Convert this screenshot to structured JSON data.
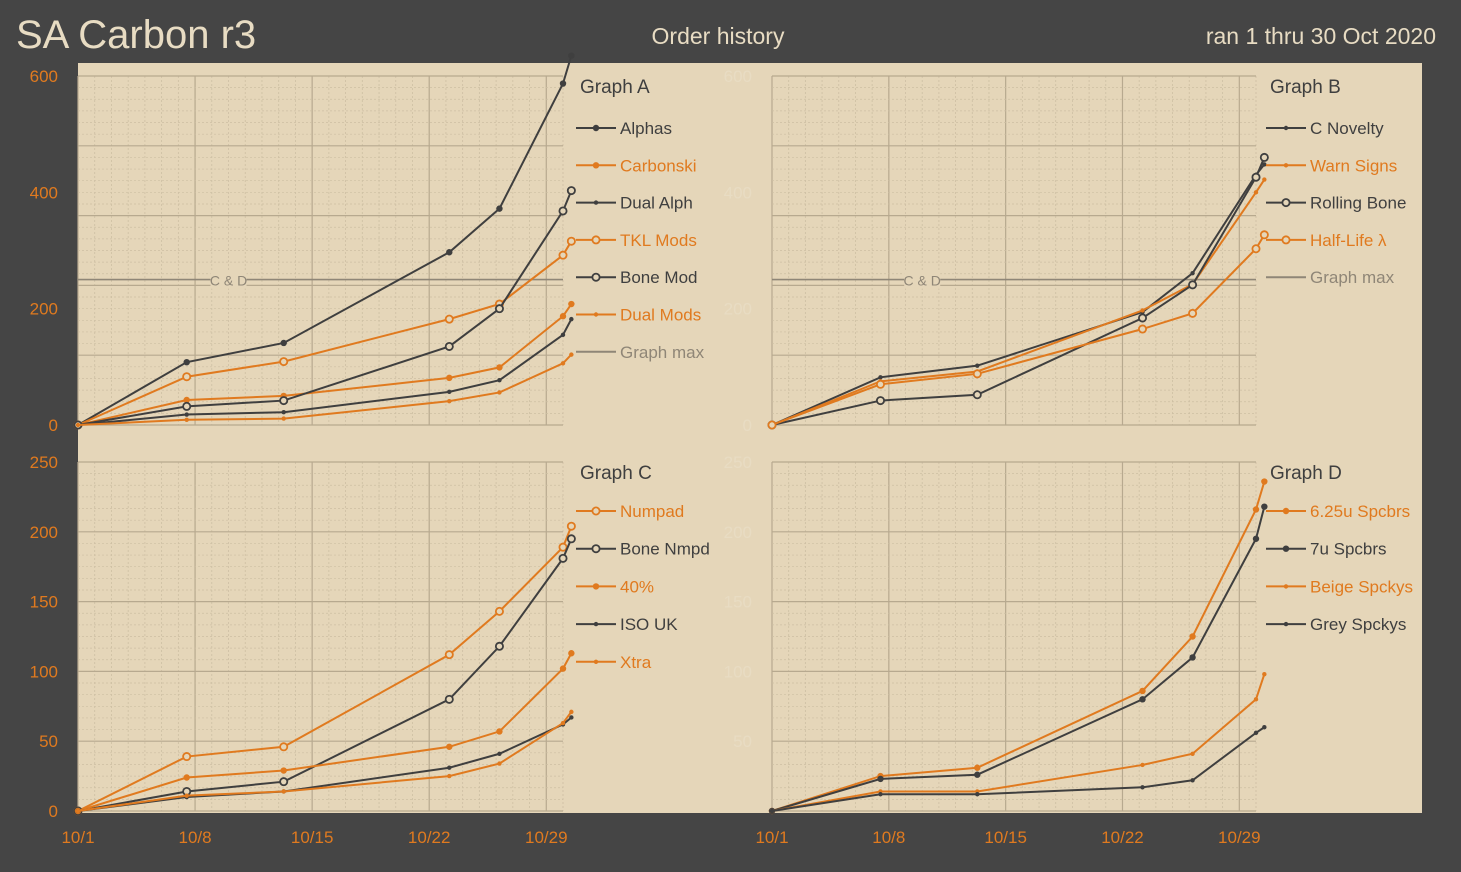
{
  "header": {
    "title": "SA Carbon r3",
    "subtitle": "Order history",
    "date_range": "ran 1 thru 30 Oct 2020"
  },
  "colors": {
    "background": "#454545",
    "panel": "#e5d6b9",
    "dark": "#3f3f3f",
    "orange": "#e07a1f",
    "graph_max": "#8f8677",
    "title_text": "#e8dcc3"
  },
  "x_axis": {
    "ticks": [
      {
        "day": 1,
        "label": "10/1"
      },
      {
        "day": 8,
        "label": "10/8"
      },
      {
        "day": 15,
        "label": "10/15"
      },
      {
        "day": 22,
        "label": "10/22"
      },
      {
        "day": 29,
        "label": "10/29"
      }
    ]
  },
  "chart_data": [
    {
      "id": "A",
      "type": "line",
      "title": "Graph A",
      "xlim": [
        1,
        30
      ],
      "ylim": [
        0,
        600
      ],
      "y_ticks": [
        0,
        200,
        400,
        600
      ],
      "y_tick_color": "orange",
      "graph_max": {
        "label": "Graph max",
        "value": 250,
        "annotation": "C & D"
      },
      "series": [
        {
          "name": "Alphas",
          "color": "dark",
          "style": "dot",
          "x": [
            1,
            7.5,
            13.3,
            23.2,
            26.2,
            30,
            30.5
          ],
          "y": [
            0,
            108,
            141,
            297,
            372,
            587,
            635
          ]
        },
        {
          "name": "Carbonski",
          "color": "orange",
          "style": "dot",
          "x": [
            1,
            7.5,
            13.3,
            23.2,
            26.2,
            30,
            30.5
          ],
          "y": [
            0,
            43,
            50,
            81,
            99,
            187,
            208
          ]
        },
        {
          "name": "Dual Alph",
          "color": "dark",
          "style": "small",
          "x": [
            1,
            7.5,
            13.3,
            23.2,
            26.2,
            30,
            30.5
          ],
          "y": [
            0,
            18,
            22,
            57,
            77,
            155,
            182
          ]
        },
        {
          "name": "TKL Mods",
          "color": "orange",
          "style": "ring",
          "x": [
            1,
            7.5,
            13.3,
            23.2,
            26.2,
            30,
            30.5
          ],
          "y": [
            0,
            83,
            109,
            182,
            208,
            292,
            316
          ]
        },
        {
          "name": "Bone Mod",
          "color": "dark",
          "style": "ring",
          "x": [
            1,
            7.5,
            13.3,
            23.2,
            26.2,
            30,
            30.5
          ],
          "y": [
            0,
            32,
            42,
            135,
            200,
            368,
            403
          ]
        },
        {
          "name": "Dual Mods",
          "color": "orange",
          "style": "small",
          "x": [
            1,
            7.5,
            13.3,
            23.2,
            26.2,
            30,
            30.5
          ],
          "y": [
            0,
            9,
            11,
            41,
            56,
            106,
            121
          ]
        }
      ]
    },
    {
      "id": "B",
      "type": "line",
      "title": "Graph B",
      "xlim": [
        1,
        30
      ],
      "ylim": [
        0,
        600
      ],
      "y_ticks": [
        0,
        200,
        400,
        600
      ],
      "y_tick_color": "light",
      "graph_max": {
        "label": "Graph max",
        "value": 250,
        "annotation": "C & D"
      },
      "series": [
        {
          "name": "C Novelty",
          "color": "dark",
          "style": "small",
          "x": [
            1,
            7.5,
            13.3,
            23.2,
            26.2,
            30,
            30.5
          ],
          "y": [
            0,
            82,
            102,
            194,
            261,
            430,
            448
          ]
        },
        {
          "name": "Warn Signs",
          "color": "orange",
          "style": "small",
          "x": [
            1,
            7.5,
            13.3,
            23.2,
            26.2,
            30,
            30.5
          ],
          "y": [
            0,
            75,
            92,
            197,
            242,
            400,
            422
          ]
        },
        {
          "name": "Rolling Bone",
          "color": "dark",
          "style": "ring",
          "x": [
            1,
            7.5,
            13.3,
            23.2,
            26.2,
            30,
            30.5
          ],
          "y": [
            0,
            42,
            52,
            184,
            241,
            426,
            460
          ]
        },
        {
          "name": "Half-Life λ",
          "color": "orange",
          "style": "ring",
          "x": [
            1,
            7.5,
            13.3,
            23.2,
            26.2,
            30,
            30.5
          ],
          "y": [
            0,
            70,
            88,
            165,
            192,
            303,
            327
          ]
        }
      ]
    },
    {
      "id": "C",
      "type": "line",
      "title": "Graph C",
      "xlim": [
        1,
        30
      ],
      "ylim": [
        0,
        250
      ],
      "y_ticks": [
        0,
        50,
        100,
        150,
        200,
        250
      ],
      "y_tick_color": "orange",
      "series": [
        {
          "name": "Numpad",
          "color": "orange",
          "style": "ring",
          "x": [
            1,
            7.5,
            13.3,
            23.2,
            26.2,
            30,
            30.5
          ],
          "y": [
            0,
            39,
            46,
            112,
            143,
            189,
            204
          ]
        },
        {
          "name": "Bone Nmpd",
          "color": "dark",
          "style": "ring",
          "x": [
            1,
            7.5,
            13.3,
            23.2,
            26.2,
            30,
            30.5
          ],
          "y": [
            0,
            14,
            21,
            80,
            118,
            181,
            195
          ]
        },
        {
          "name": "40%",
          "color": "orange",
          "style": "dot",
          "x": [
            1,
            7.5,
            13.3,
            23.2,
            26.2,
            30,
            30.5
          ],
          "y": [
            0,
            24,
            29,
            46,
            57,
            102,
            113
          ]
        },
        {
          "name": "ISO UK",
          "color": "dark",
          "style": "small",
          "x": [
            1,
            7.5,
            13.3,
            23.2,
            26.2,
            30,
            30.5
          ],
          "y": [
            0,
            10,
            14,
            31,
            41,
            62,
            67
          ]
        },
        {
          "name": "Xtra",
          "color": "orange",
          "style": "small",
          "x": [
            1,
            7.5,
            13.3,
            23.2,
            26.2,
            30,
            30.5
          ],
          "y": [
            0,
            11,
            14,
            25,
            34,
            63,
            71
          ]
        }
      ]
    },
    {
      "id": "D",
      "type": "line",
      "title": "Graph D",
      "xlim": [
        1,
        30
      ],
      "ylim": [
        0,
        250
      ],
      "y_ticks": [
        50,
        100,
        150,
        200,
        250
      ],
      "y_tick_color": "light",
      "series": [
        {
          "name": "6.25u Spcbrs",
          "color": "orange",
          "style": "dot",
          "x": [
            1,
            7.5,
            13.3,
            23.2,
            26.2,
            30,
            30.5
          ],
          "y": [
            0,
            25,
            31,
            86,
            125,
            216,
            236
          ]
        },
        {
          "name": "7u Spcbrs",
          "color": "dark",
          "style": "dot",
          "x": [
            1,
            7.5,
            13.3,
            23.2,
            26.2,
            30,
            30.5
          ],
          "y": [
            0,
            23,
            26,
            80,
            110,
            195,
            218
          ]
        },
        {
          "name": "Beige Spckys",
          "color": "orange",
          "style": "small",
          "x": [
            1,
            7.5,
            13.3,
            23.2,
            26.2,
            30,
            30.5
          ],
          "y": [
            0,
            14,
            14,
            33,
            41,
            80,
            98
          ]
        },
        {
          "name": "Grey Spckys",
          "color": "dark",
          "style": "small",
          "x": [
            1,
            7.5,
            13.3,
            23.2,
            26.2,
            30,
            30.5
          ],
          "y": [
            0,
            12,
            12,
            17,
            22,
            56,
            60
          ]
        }
      ]
    }
  ]
}
